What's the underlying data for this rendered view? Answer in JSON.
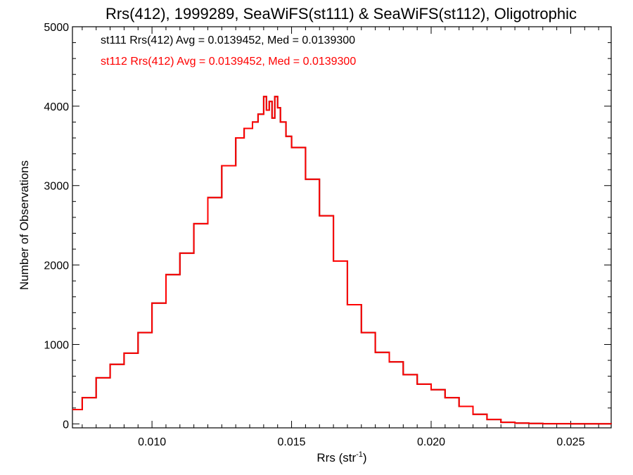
{
  "chart_data": {
    "type": "line",
    "title": "Rrs(412), 1999289, SeaWiFS(st111) & SeaWiFS(st112), Oligotrophic",
    "xlabel": "Rrs (str",
    "xlabel_superscript": "-1",
    "xlabel_suffix": ")",
    "ylabel": "Number of Observations",
    "xlim": [
      0.00715,
      0.02645
    ],
    "ylim": [
      -50,
      5000
    ],
    "xticks": [
      0.01,
      0.015,
      0.02,
      0.025
    ],
    "xtick_labels": [
      "0.010",
      "0.015",
      "0.020",
      "0.025"
    ],
    "yticks": [
      0,
      1000,
      2000,
      3000,
      4000,
      5000
    ],
    "ytick_labels": [
      "0",
      "1000",
      "2000",
      "3000",
      "4000",
      "5000"
    ],
    "grid": false,
    "annotations": [
      {
        "text": "st111 Rrs(412) Avg = 0.0139452, Med = 0.0139300",
        "color": "#000000"
      },
      {
        "text": "st112 Rrs(412) Avg = 0.0139452, Med = 0.0139300",
        "color": "#ff0000"
      }
    ],
    "series": [
      {
        "color": "#000000",
        "x": [
          0.00715,
          0.0075,
          0.008,
          0.0085,
          0.009,
          0.0095,
          0.01,
          0.0105,
          0.011,
          0.0115,
          0.012,
          0.0125,
          0.013,
          0.0133,
          0.0136,
          0.0138,
          0.014,
          0.0141,
          0.0142,
          0.0143,
          0.0144,
          0.0145,
          0.0146,
          0.0148,
          0.015,
          0.0155,
          0.016,
          0.0165,
          0.017,
          0.0175,
          0.018,
          0.0185,
          0.019,
          0.0195,
          0.02,
          0.0205,
          0.021,
          0.0215,
          0.022,
          0.0225,
          0.023,
          0.0235,
          0.024,
          0.025,
          0.02645
        ],
        "y": [
          180,
          330,
          580,
          750,
          890,
          1150,
          1520,
          1880,
          2150,
          2520,
          2850,
          3250,
          3600,
          3720,
          3800,
          3900,
          4120,
          3950,
          4060,
          3850,
          4120,
          3980,
          3800,
          3620,
          3480,
          3080,
          2620,
          2050,
          1500,
          1150,
          900,
          780,
          620,
          500,
          430,
          330,
          220,
          120,
          55,
          20,
          10,
          5,
          2,
          1,
          0
        ]
      },
      {
        "color": "#ff0000",
        "x": [
          0.00715,
          0.0075,
          0.008,
          0.0085,
          0.009,
          0.0095,
          0.01,
          0.0105,
          0.011,
          0.0115,
          0.012,
          0.0125,
          0.013,
          0.0133,
          0.0136,
          0.0138,
          0.014,
          0.0141,
          0.0142,
          0.0143,
          0.0144,
          0.0145,
          0.0146,
          0.0148,
          0.015,
          0.0155,
          0.016,
          0.0165,
          0.017,
          0.0175,
          0.018,
          0.0185,
          0.019,
          0.0195,
          0.02,
          0.0205,
          0.021,
          0.0215,
          0.022,
          0.0225,
          0.023,
          0.0235,
          0.024,
          0.025,
          0.02645
        ],
        "y": [
          180,
          330,
          580,
          750,
          890,
          1150,
          1520,
          1880,
          2150,
          2520,
          2850,
          3250,
          3600,
          3720,
          3800,
          3900,
          4120,
          3950,
          4060,
          3850,
          4120,
          3980,
          3800,
          3620,
          3480,
          3080,
          2620,
          2050,
          1500,
          1150,
          900,
          780,
          620,
          500,
          430,
          330,
          220,
          120,
          55,
          20,
          10,
          5,
          2,
          1,
          0
        ]
      }
    ]
  }
}
